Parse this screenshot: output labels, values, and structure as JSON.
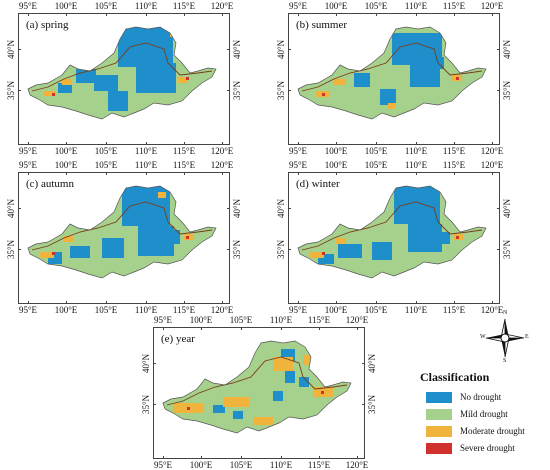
{
  "panels": [
    {
      "label": "(a) spring"
    },
    {
      "label": "(b) summer"
    },
    {
      "label": "(c) autumn"
    },
    {
      "label": "(d) winter"
    },
    {
      "label": "(e) year"
    }
  ],
  "axes": {
    "lon_ticks": [
      "95°E",
      "100°E",
      "105°E",
      "110°E",
      "115°E",
      "120°E"
    ],
    "lat_ticks": [
      "40°N",
      "35°N"
    ]
  },
  "legend": {
    "title": "Classification",
    "items": [
      {
        "label": "No drought",
        "color": "#1f8fcc"
      },
      {
        "label": "Mild drought",
        "color": "#a6d18c"
      },
      {
        "label": "Moderate drought",
        "color": "#f0b43c"
      },
      {
        "label": "Severe drought",
        "color": "#d0312d"
      }
    ]
  },
  "north_arrow": {
    "N": "N",
    "S": "S",
    "E": "E",
    "W": "W"
  }
}
